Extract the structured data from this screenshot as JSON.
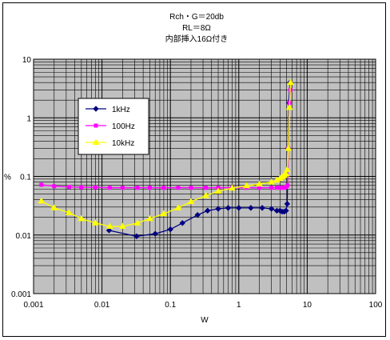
{
  "chart_data": {
    "type": "line",
    "title_lines": [
      "Rch・G＝20db",
      "RL＝8Ω",
      "内部挿入16Ω付き"
    ],
    "xlabel": "W",
    "ylabel": "%",
    "x_scale": "log",
    "y_scale": "log",
    "xlim": [
      0.001,
      100
    ],
    "ylim": [
      0.001,
      10
    ],
    "x_ticks": [
      "0.001",
      "0.01",
      "0.1",
      "1",
      "10",
      "100"
    ],
    "y_ticks": [
      "10",
      "1",
      "0.1",
      "0.01",
      "0.001"
    ],
    "grid": true,
    "plot_background": "#c0c0c0",
    "legend_position": "upper-left inside plot",
    "series": [
      {
        "name": "1kHz",
        "color": "#000080",
        "marker": "diamond",
        "x": [
          0.0127,
          0.032,
          0.06,
          0.1,
          0.15,
          0.25,
          0.35,
          0.5,
          0.7,
          1.0,
          1.5,
          2.2,
          3.0,
          3.6,
          4.0,
          4.3,
          4.6,
          4.9,
          5.1,
          5.25,
          5.4,
          5.6
        ],
        "y": [
          0.012,
          0.0095,
          0.0105,
          0.0125,
          0.016,
          0.022,
          0.026,
          0.028,
          0.029,
          0.029,
          0.029,
          0.029,
          0.028,
          0.026,
          0.026,
          0.025,
          0.025,
          0.026,
          0.034,
          0.3,
          1.8,
          4.0
        ]
      },
      {
        "name": "100Hz",
        "color": "#ff00ff",
        "marker": "square",
        "x": [
          0.0013,
          0.002,
          0.0033,
          0.005,
          0.008,
          0.013,
          0.02,
          0.033,
          0.05,
          0.08,
          0.13,
          0.2,
          0.33,
          0.5,
          0.8,
          1.3,
          2.0,
          3.0,
          3.6,
          4.0,
          4.3,
          4.6,
          4.9,
          5.15,
          5.3,
          5.5,
          5.7
        ],
        "y": [
          0.072,
          0.068,
          0.066,
          0.065,
          0.065,
          0.064,
          0.064,
          0.064,
          0.064,
          0.064,
          0.064,
          0.064,
          0.064,
          0.064,
          0.064,
          0.064,
          0.064,
          0.064,
          0.064,
          0.064,
          0.064,
          0.064,
          0.065,
          0.07,
          0.3,
          1.8,
          3.0
        ]
      },
      {
        "name": "10kHz",
        "color": "#ffff00",
        "marker": "triangle",
        "x": [
          0.0013,
          0.002,
          0.0033,
          0.005,
          0.008,
          0.013,
          0.02,
          0.033,
          0.05,
          0.08,
          0.13,
          0.2,
          0.33,
          0.5,
          0.8,
          1.3,
          2.0,
          3.0,
          3.6,
          4.0,
          4.3,
          4.6,
          4.9,
          5.1,
          5.3,
          5.5,
          5.7
        ],
        "y": [
          0.038,
          0.029,
          0.024,
          0.019,
          0.016,
          0.014,
          0.014,
          0.016,
          0.019,
          0.023,
          0.029,
          0.037,
          0.047,
          0.056,
          0.063,
          0.069,
          0.074,
          0.08,
          0.086,
          0.092,
          0.098,
          0.104,
          0.11,
          0.13,
          0.3,
          1.5,
          4.0
        ]
      }
    ]
  }
}
